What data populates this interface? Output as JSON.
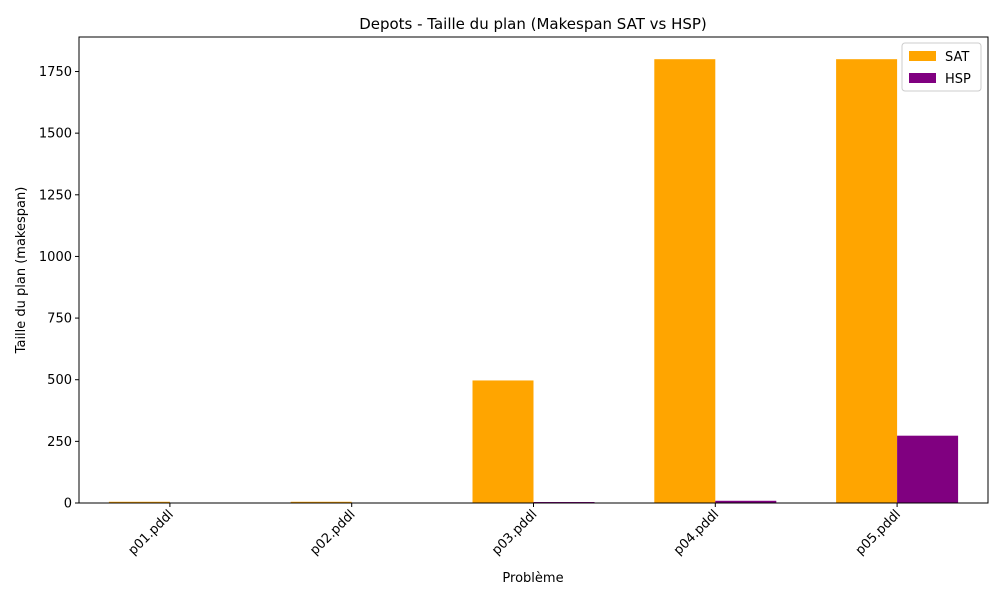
{
  "chart_data": {
    "type": "bar",
    "title": "Depots - Taille du plan (Makespan SAT vs HSP)",
    "xlabel": "Problème",
    "ylabel": "Taille du plan (makespan)",
    "categories": [
      "p01.pddl",
      "p02.pddl",
      "p03.pddl",
      "p04.pddl",
      "p05.pddl"
    ],
    "series": [
      {
        "name": "SAT",
        "color": "#FFA500",
        "values": [
          5,
          5,
          497,
          1800,
          1800
        ]
      },
      {
        "name": "HSP",
        "color": "#800080",
        "values": [
          0,
          0,
          4,
          9,
          273
        ]
      }
    ],
    "ylim": [
      0,
      1890
    ],
    "yticks": [
      0,
      250,
      500,
      750,
      1000,
      1250,
      1500,
      1750
    ],
    "grid": false,
    "legend": "top-right"
  }
}
